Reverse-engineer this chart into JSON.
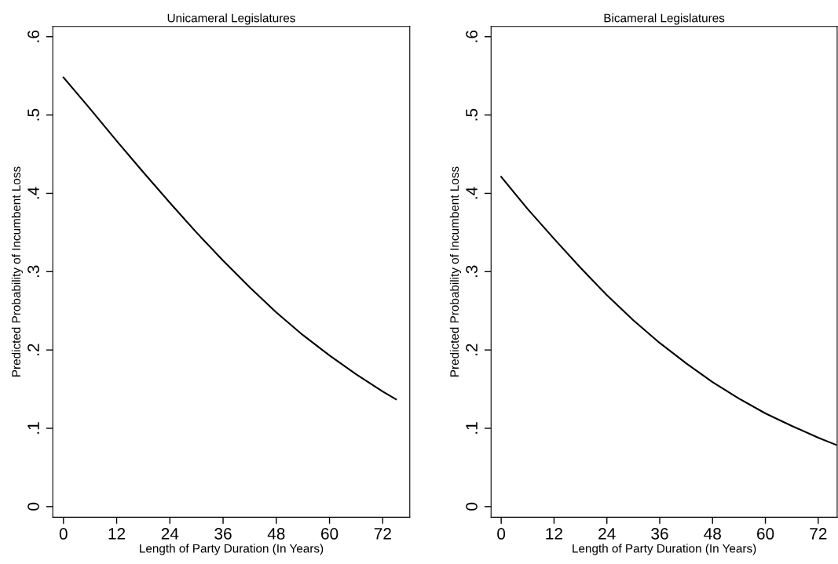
{
  "chart_data": [
    {
      "type": "line",
      "title": "Unicameral Legislatures",
      "xlabel": "Length of Party Duration (In Years)",
      "ylabel": "Predicted Probability of Incumbent Loss",
      "x": [
        0,
        6,
        12,
        18,
        24,
        30,
        36,
        42,
        48,
        54,
        60,
        66,
        72,
        75
      ],
      "series": [
        {
          "color": "#000000",
          "values": [
            0.548,
            0.508,
            0.467,
            0.427,
            0.388,
            0.35,
            0.314,
            0.28,
            0.248,
            0.219,
            0.193,
            0.169,
            0.147,
            0.137
          ]
        }
      ],
      "xlim": [
        -2.4,
        78.1
      ],
      "ylim": [
        -0.0135,
        0.613
      ],
      "xticks": [
        0,
        12,
        24,
        36,
        48,
        60,
        72
      ],
      "yticks": [
        {
          "value": 0,
          "label": "0"
        },
        {
          "value": 0.1,
          "label": ".1"
        },
        {
          "value": 0.2,
          "label": ".2"
        },
        {
          "value": 0.3,
          "label": ".3"
        },
        {
          "value": 0.4,
          "label": ".4"
        },
        {
          "value": 0.5,
          "label": ".5"
        },
        {
          "value": 0.6,
          "label": ".6"
        }
      ],
      "grid": false,
      "legend": false
    },
    {
      "type": "line",
      "title": "Bicameral Legislatures",
      "xlabel": "Length of Party Duration (In Years)",
      "ylabel": "Predicted Probability of Incumbent Loss",
      "x": [
        0,
        6,
        12,
        18,
        24,
        30,
        36,
        42,
        48,
        54,
        60,
        66,
        72,
        76
      ],
      "series": [
        {
          "color": "#000000",
          "values": [
            0.421,
            0.38,
            0.342,
            0.305,
            0.27,
            0.238,
            0.209,
            0.183,
            0.159,
            0.138,
            0.119,
            0.103,
            0.088,
            0.079
          ]
        }
      ],
      "xlim": [
        -2.3,
        76.3
      ],
      "ylim": [
        -0.0135,
        0.613
      ],
      "xticks": [
        0,
        12,
        24,
        36,
        48,
        60,
        72
      ],
      "yticks": [
        {
          "value": 0,
          "label": "0"
        },
        {
          "value": 0.1,
          "label": ".1"
        },
        {
          "value": 0.2,
          "label": ".2"
        },
        {
          "value": 0.3,
          "label": ".3"
        },
        {
          "value": 0.4,
          "label": ".4"
        },
        {
          "value": 0.5,
          "label": ".5"
        },
        {
          "value": 0.6,
          "label": ".6"
        }
      ],
      "grid": false,
      "legend": false
    }
  ]
}
